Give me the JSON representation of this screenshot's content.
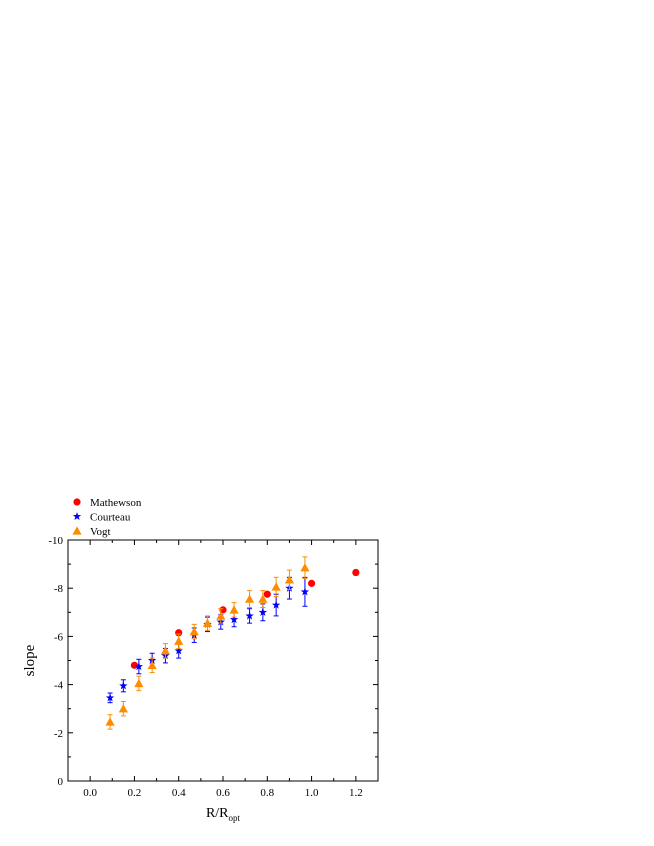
{
  "chart_data": {
    "type": "scatter",
    "title": "",
    "xlabel": "R/R",
    "xlabel_sub": "opt",
    "ylabel": "slope",
    "xlim": [
      -0.1,
      1.3
    ],
    "ylim": [
      0,
      -10
    ],
    "x_ticks": [
      0.0,
      0.2,
      0.4,
      0.6,
      0.8,
      1.0,
      1.2
    ],
    "x_tick_labels": [
      "0.0",
      "0.2",
      "0.4",
      "0.6",
      "0.8",
      "1.0",
      "1.2"
    ],
    "y_ticks": [
      0,
      -2,
      -4,
      -6,
      -8,
      -10
    ],
    "y_tick_labels": [
      "0",
      "-2",
      "-4",
      "-6",
      "-8",
      "-10"
    ],
    "grid": false,
    "legend_placement": "above-top-left",
    "series": [
      {
        "name": "Mathewson",
        "marker": "circle",
        "color": "#ff0000",
        "points": [
          {
            "x": 0.2,
            "y": -4.8,
            "err": 0
          },
          {
            "x": 0.4,
            "y": -6.15,
            "err": 0
          },
          {
            "x": 0.6,
            "y": -7.1,
            "err": 0
          },
          {
            "x": 0.8,
            "y": -7.75,
            "err": 0
          },
          {
            "x": 1.0,
            "y": -8.2,
            "err": 0
          },
          {
            "x": 1.2,
            "y": -8.65,
            "err": 0.1
          }
        ]
      },
      {
        "name": "Courteau",
        "marker": "star",
        "color": "#0000ff",
        "points": [
          {
            "x": 0.09,
            "y": -3.45,
            "err": 0.2
          },
          {
            "x": 0.15,
            "y": -3.95,
            "err": 0.25
          },
          {
            "x": 0.22,
            "y": -4.75,
            "err": 0.3
          },
          {
            "x": 0.28,
            "y": -5.0,
            "err": 0.3
          },
          {
            "x": 0.34,
            "y": -5.2,
            "err": 0.3
          },
          {
            "x": 0.4,
            "y": -5.4,
            "err": 0.3
          },
          {
            "x": 0.47,
            "y": -6.05,
            "err": 0.3
          },
          {
            "x": 0.53,
            "y": -6.5,
            "err": 0.3
          },
          {
            "x": 0.59,
            "y": -6.6,
            "err": 0.3
          },
          {
            "x": 0.65,
            "y": -6.7,
            "err": 0.3
          },
          {
            "x": 0.72,
            "y": -6.85,
            "err": 0.3
          },
          {
            "x": 0.78,
            "y": -7.0,
            "err": 0.35
          },
          {
            "x": 0.84,
            "y": -7.3,
            "err": 0.45
          },
          {
            "x": 0.9,
            "y": -8.0,
            "err": 0.45
          },
          {
            "x": 0.97,
            "y": -7.85,
            "err": 0.6
          }
        ]
      },
      {
        "name": "Vogt",
        "marker": "triangle",
        "color": "#ff8c00",
        "points": [
          {
            "x": 0.09,
            "y": -2.45,
            "err": 0.3
          },
          {
            "x": 0.15,
            "y": -3.0,
            "err": 0.3
          },
          {
            "x": 0.22,
            "y": -4.05,
            "err": 0.3
          },
          {
            "x": 0.28,
            "y": -4.8,
            "err": 0.3
          },
          {
            "x": 0.34,
            "y": -5.4,
            "err": 0.3
          },
          {
            "x": 0.4,
            "y": -5.8,
            "err": 0.3
          },
          {
            "x": 0.47,
            "y": -6.2,
            "err": 0.3
          },
          {
            "x": 0.53,
            "y": -6.55,
            "err": 0.3
          },
          {
            "x": 0.59,
            "y": -6.85,
            "err": 0.3
          },
          {
            "x": 0.65,
            "y": -7.1,
            "err": 0.3
          },
          {
            "x": 0.72,
            "y": -7.55,
            "err": 0.35
          },
          {
            "x": 0.78,
            "y": -7.55,
            "err": 0.35
          },
          {
            "x": 0.84,
            "y": -8.05,
            "err": 0.4
          },
          {
            "x": 0.9,
            "y": -8.35,
            "err": 0.4
          },
          {
            "x": 0.97,
            "y": -8.85,
            "err": 0.45
          }
        ]
      }
    ]
  }
}
